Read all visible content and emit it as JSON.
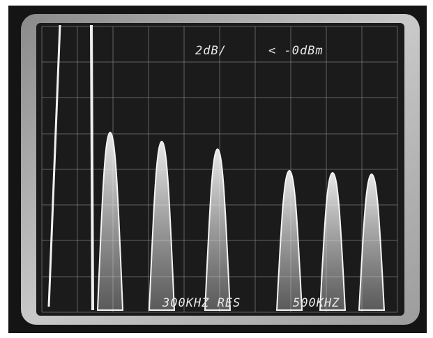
{
  "screen": {
    "readouts": {
      "scale": "2dB/",
      "reference": "< -0dBm",
      "resolution": "300KHZ RES",
      "span": "500KHZ"
    }
  }
}
